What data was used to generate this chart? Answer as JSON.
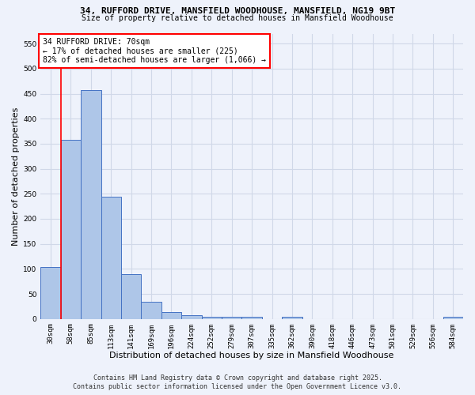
{
  "title_line1": "34, RUFFORD DRIVE, MANSFIELD WOODHOUSE, MANSFIELD, NG19 9BT",
  "title_line2": "Size of property relative to detached houses in Mansfield Woodhouse",
  "xlabel": "Distribution of detached houses by size in Mansfield Woodhouse",
  "ylabel": "Number of detached properties",
  "annotation_title": "34 RUFFORD DRIVE: 70sqm",
  "annotation_line2": "← 17% of detached houses are smaller (225)",
  "annotation_line3": "82% of semi-detached houses are larger (1,066) →",
  "footnote1": "Contains HM Land Registry data © Crown copyright and database right 2025.",
  "footnote2": "Contains public sector information licensed under the Open Government Licence v3.0.",
  "bar_labels": [
    "30sqm",
    "58sqm",
    "85sqm",
    "113sqm",
    "141sqm",
    "169sqm",
    "196sqm",
    "224sqm",
    "252sqm",
    "279sqm",
    "307sqm",
    "335sqm",
    "362sqm",
    "390sqm",
    "418sqm",
    "446sqm",
    "473sqm",
    "501sqm",
    "529sqm",
    "556sqm",
    "584sqm"
  ],
  "bar_values": [
    104,
    357,
    457,
    244,
    90,
    35,
    14,
    8,
    5,
    5,
    5,
    0,
    5,
    0,
    0,
    0,
    0,
    0,
    0,
    0,
    5
  ],
  "bar_color": "#aec6e8",
  "bar_edge_color": "#4472c4",
  "grid_color": "#d0d8e8",
  "background_color": "#eef2fb",
  "red_line_x": 0.5,
  "ylim": [
    0,
    570
  ],
  "yticks": [
    0,
    50,
    100,
    150,
    200,
    250,
    300,
    350,
    400,
    450,
    500,
    550
  ]
}
